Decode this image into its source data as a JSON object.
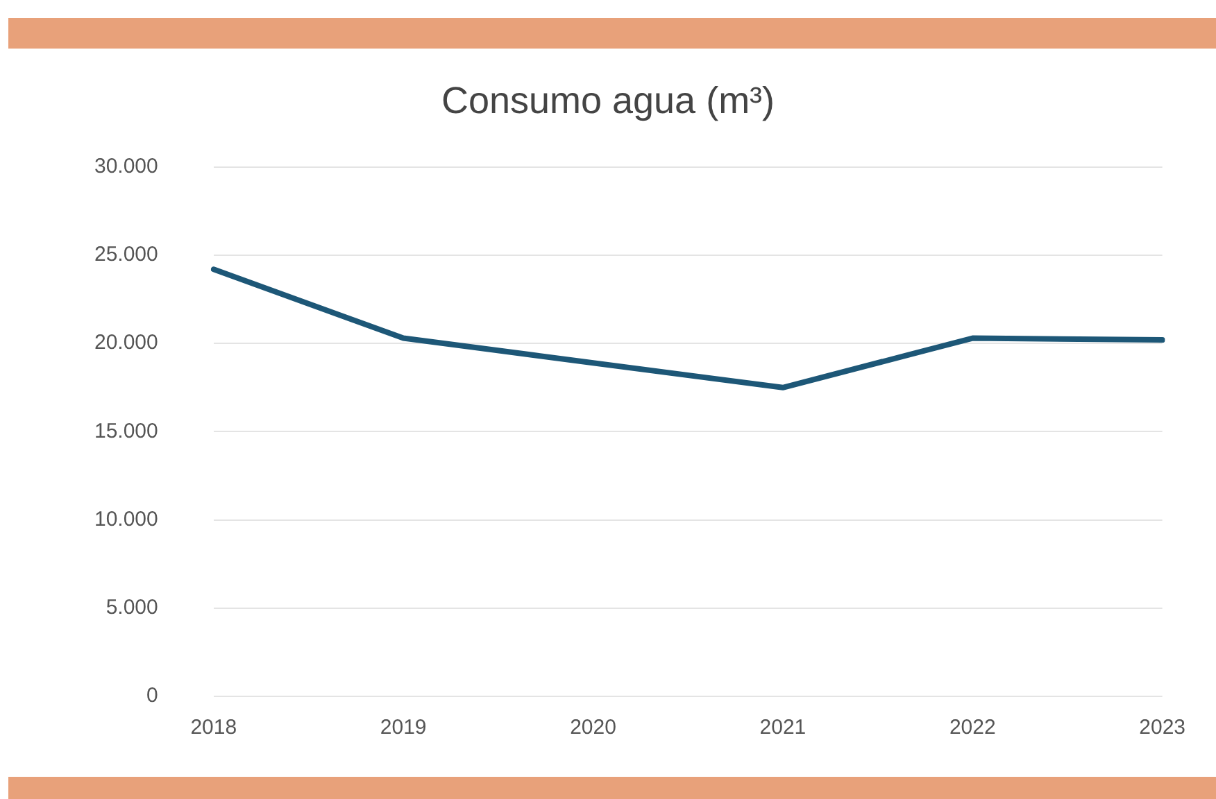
{
  "chart_data": {
    "type": "line",
    "title": "Consumo agua (m³)",
    "categories": [
      "2018",
      "2019",
      "2020",
      "2021",
      "2022",
      "2023"
    ],
    "series": [
      {
        "color": "#1d5777",
        "values": [
          24200,
          20300,
          18900,
          17500,
          20300,
          20200
        ]
      }
    ],
    "ylim": [
      0,
      30000
    ],
    "yticks": [
      {
        "value": 0,
        "label": "0"
      },
      {
        "value": 5000,
        "label": "5.000"
      },
      {
        "value": 10000,
        "label": "10.000"
      },
      {
        "value": 15000,
        "label": "15.000"
      },
      {
        "value": 20000,
        "label": "20.000"
      },
      {
        "value": 25000,
        "label": "25.000"
      },
      {
        "value": 30000,
        "label": "30.000"
      }
    ],
    "grid": "y",
    "legend": false,
    "marker": "none",
    "line_style": "solid"
  }
}
